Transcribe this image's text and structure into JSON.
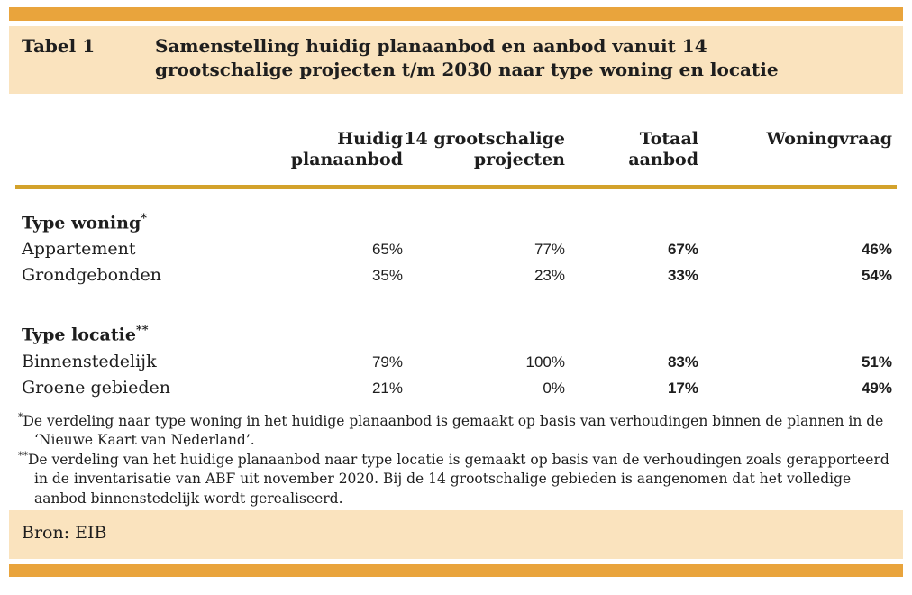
{
  "colors": {
    "bar_orange": "#e9a43c",
    "band_cream": "#fae3be",
    "rule_gold": "#d3a22b",
    "text": "#1e1e1e"
  },
  "caption": {
    "label": "Tabel 1",
    "title": "Samenstelling huidig planaanbod en aanbod vanuit 14 grootschalige projecten t/m 2030 naar type woning en locatie"
  },
  "table": {
    "columns": [
      "Huidig planaanbod",
      "14 grootschalige projecten",
      "Totaal aanbod",
      "Woningvraag"
    ],
    "sections": [
      {
        "heading": "Type woning",
        "heading_marker": "*",
        "rows": [
          {
            "label": "Appartement",
            "values": [
              "65%",
              "77%",
              "67%",
              "46%"
            ]
          },
          {
            "label": "Grondgebonden",
            "values": [
              "35%",
              "23%",
              "33%",
              "54%"
            ]
          }
        ]
      },
      {
        "heading": "Type locatie",
        "heading_marker": "**",
        "rows": [
          {
            "label": "Binnenstedelijk",
            "values": [
              "79%",
              "100%",
              "83%",
              "51%"
            ]
          },
          {
            "label": "Groene gebieden",
            "values": [
              "21%",
              "0%",
              "17%",
              "49%"
            ]
          }
        ]
      }
    ]
  },
  "footnotes": [
    {
      "marker": "*",
      "text": "De verdeling naar type woning in het huidige planaanbod is gemaakt op basis van verhoudingen binnen de plannen in de ‘Nieuwe Kaart van Nederland’."
    },
    {
      "marker": "**",
      "text": "De verdeling van het huidige planaanbod naar type locatie is gemaakt op basis van de verhoudingen zoals gerapporteerd in de inventarisatie van ABF uit november 2020. Bij de 14 grootschalige gebieden is aangenomen dat het volledige aanbod binnenstedelijk wordt gerealiseerd."
    }
  ],
  "source": {
    "text": "Bron: EIB"
  }
}
